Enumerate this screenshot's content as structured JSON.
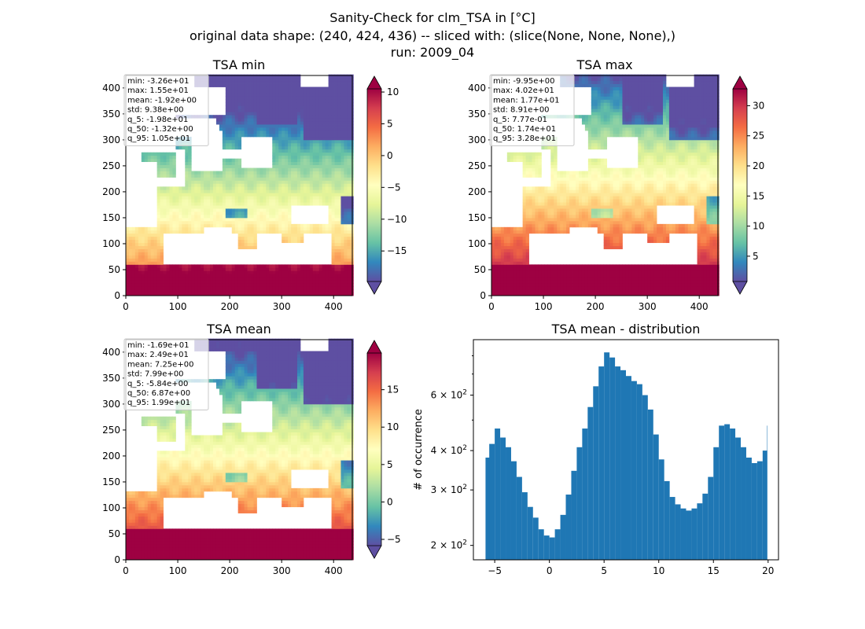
{
  "figure": {
    "title_lines": [
      "Sanity-Check for clm_TSA in [°C]",
      "original data shape: (240, 424, 436) -- sliced with: (slice(None, None, None),)",
      "run: 2009_04"
    ]
  },
  "colors": {
    "histogram_bar": "#1f77b4",
    "colormap": [
      "#5e4fa2",
      "#3288bd",
      "#66c2a5",
      "#abdda4",
      "#e6f598",
      "#ffffbf",
      "#fee08b",
      "#fdae61",
      "#f46d43",
      "#d53e4f",
      "#9e0142"
    ]
  },
  "chart_data": [
    {
      "type": "heatmap",
      "title": "TSA min",
      "xlim": [
        0,
        436
      ],
      "ylim": [
        0,
        424
      ],
      "xticks": [
        0,
        100,
        200,
        300,
        400
      ],
      "yticks": [
        0,
        50,
        100,
        150,
        200,
        250,
        300,
        350,
        400
      ],
      "colorbar": {
        "ticks": [
          -15,
          -10,
          -5,
          0,
          5,
          10
        ],
        "tick_labels": [
          "−15",
          "−10",
          "−5",
          "0",
          "5",
          "10"
        ],
        "extend": "both"
      },
      "stats": [
        "min: -3.26e+01",
        "max: 1.55e+01",
        "mean: -1.92e+00",
        "std: 9.38e+00",
        "q_5: -1.98e+01",
        "q_50: -1.32e+00",
        "q_95: 1.05e+01"
      ]
    },
    {
      "type": "heatmap",
      "title": "TSA max",
      "xlim": [
        0,
        436
      ],
      "ylim": [
        0,
        424
      ],
      "xticks": [
        0,
        100,
        200,
        300,
        400
      ],
      "yticks": [
        0,
        50,
        100,
        150,
        200,
        250,
        300,
        350,
        400
      ],
      "colorbar": {
        "ticks": [
          5,
          10,
          15,
          20,
          25,
          30
        ],
        "tick_labels": [
          "5",
          "10",
          "15",
          "20",
          "25",
          "30"
        ],
        "extend": "both"
      },
      "stats": [
        "min: -9.95e+00",
        "max: 4.02e+01",
        "mean: 1.77e+01",
        "std: 8.91e+00",
        "q_5: 7.77e-01",
        "q_50: 1.74e+01",
        "q_95: 3.28e+01"
      ]
    },
    {
      "type": "heatmap",
      "title": "TSA mean",
      "xlim": [
        0,
        436
      ],
      "ylim": [
        0,
        424
      ],
      "xticks": [
        0,
        100,
        200,
        300,
        400
      ],
      "yticks": [
        0,
        50,
        100,
        150,
        200,
        250,
        300,
        350,
        400
      ],
      "colorbar": {
        "ticks": [
          -5,
          0,
          5,
          10,
          15
        ],
        "tick_labels": [
          "−5",
          "0",
          "5",
          "10",
          "15"
        ],
        "extend": "both"
      },
      "stats": [
        "min: -1.69e+01",
        "max: 2.49e+01",
        "mean: 7.25e+00",
        "std: 7.99e+00",
        "q_5: -5.84e+00",
        "q_50: 6.87e+00",
        "q_95: 1.99e+01"
      ]
    },
    {
      "type": "bar",
      "title": "TSA mean - distribution",
      "xlabel": "",
      "ylabel": "# of occurrence",
      "log_y": true,
      "xlim": [
        -6.95,
        20.95
      ],
      "ylim": [
        180,
        900
      ],
      "xticks": [
        -5,
        0,
        5,
        10,
        15,
        20
      ],
      "xtick_labels": [
        "−5",
        "0",
        "5",
        "10",
        "15",
        "20"
      ],
      "yticks": [
        200,
        300,
        400,
        600
      ],
      "ytick_base": "10",
      "ytick_exponent": "2",
      "ytick_mantissas": [
        "2 × ",
        "3 × ",
        "4 × ",
        "6 × "
      ],
      "x": [
        -5.84,
        -5.5,
        -5.0,
        -4.5,
        -4.0,
        -3.5,
        -3.0,
        -2.5,
        -2.0,
        -1.5,
        -1.0,
        -0.5,
        0.0,
        0.5,
        1.0,
        1.5,
        2.0,
        2.5,
        3.0,
        3.5,
        4.0,
        4.5,
        5.0,
        5.5,
        6.0,
        6.5,
        7.0,
        7.5,
        8.0,
        8.5,
        9.0,
        9.5,
        10.0,
        10.5,
        11.0,
        11.5,
        12.0,
        12.5,
        13.0,
        13.5,
        14.0,
        14.5,
        15.0,
        15.5,
        16.0,
        16.5,
        17.0,
        17.5,
        18.0,
        18.5,
        19.0,
        19.5,
        19.9
      ],
      "values": [
        380,
        420,
        470,
        440,
        410,
        370,
        330,
        295,
        265,
        245,
        225,
        215,
        212,
        225,
        250,
        290,
        345,
        410,
        470,
        550,
        640,
        740,
        820,
        790,
        740,
        720,
        690,
        665,
        650,
        600,
        540,
        450,
        375,
        320,
        285,
        270,
        262,
        258,
        262,
        272,
        292,
        330,
        410,
        480,
        485,
        470,
        440,
        410,
        380,
        365,
        370,
        400,
        480
      ],
      "stats": []
    }
  ]
}
